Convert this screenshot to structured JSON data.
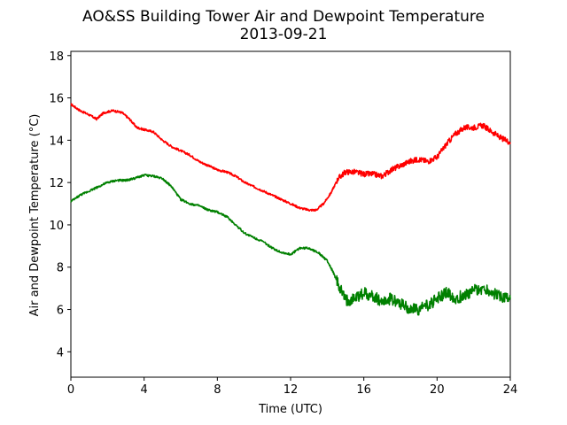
{
  "chart_data": {
    "type": "line",
    "title": "AO&SS Building Tower Air and Dewpoint Temperature",
    "subtitle": "2013-09-21",
    "xlabel": "Time (UTC)",
    "ylabel": "Air and Dewpoint Temperature (°C)",
    "xlim": [
      0,
      24
    ],
    "ylim": [
      2.8,
      18.2
    ],
    "xticks": [
      0,
      4,
      8,
      12,
      16,
      20,
      24
    ],
    "yticks": [
      4,
      6,
      8,
      10,
      12,
      14,
      16,
      18
    ],
    "grid": false,
    "legend": "none",
    "series": [
      {
        "color": "#ff0000",
        "x": [
          0,
          0.5,
          1,
          1.4,
          1.8,
          2.3,
          2.8,
          3.2,
          3.6,
          4,
          4.5,
          5,
          5.5,
          6,
          6.5,
          7,
          7.5,
          8,
          8.5,
          9,
          9.5,
          10,
          10.5,
          11,
          11.5,
          12,
          12.5,
          13,
          13.4,
          13.8,
          14.2,
          14.6,
          15,
          15.5,
          16,
          16.5,
          17,
          17.5,
          18,
          18.5,
          19,
          19.5,
          20,
          20.5,
          21,
          21.5,
          22,
          22.5,
          23,
          23.5,
          24
        ],
        "y": [
          15.7,
          15.4,
          15.2,
          15.0,
          15.3,
          15.4,
          15.3,
          15.0,
          14.6,
          14.5,
          14.4,
          14.0,
          13.7,
          13.5,
          13.3,
          13.0,
          12.8,
          12.6,
          12.5,
          12.3,
          12.0,
          11.8,
          11.6,
          11.4,
          11.2,
          11.0,
          10.8,
          10.7,
          10.7,
          11.0,
          11.5,
          12.2,
          12.5,
          12.5,
          12.4,
          12.4,
          12.3,
          12.6,
          12.8,
          13.0,
          13.1,
          13.0,
          13.2,
          13.8,
          14.3,
          14.6,
          14.6,
          14.7,
          14.4,
          14.1,
          13.9
        ]
      },
      {
        "color": "#008000",
        "x": [
          0,
          0.5,
          1,
          1.5,
          2,
          2.5,
          3,
          3.5,
          4,
          4.5,
          5,
          5.5,
          6,
          6.5,
          7,
          7.5,
          8,
          8.5,
          9,
          9.5,
          10,
          10.5,
          11,
          11.5,
          12,
          12.5,
          13,
          13.5,
          14,
          14.3,
          14.6,
          15,
          15.5,
          16,
          16.5,
          17,
          17.5,
          18,
          18.5,
          19,
          19.5,
          20,
          20.5,
          21,
          21.5,
          22,
          22.5,
          23,
          23.5,
          24
        ],
        "y": [
          11.1,
          11.4,
          11.6,
          11.8,
          12.0,
          12.1,
          12.1,
          12.2,
          12.35,
          12.3,
          12.2,
          11.8,
          11.2,
          11.0,
          10.9,
          10.7,
          10.6,
          10.4,
          10.0,
          9.6,
          9.4,
          9.2,
          8.9,
          8.7,
          8.6,
          8.9,
          8.9,
          8.7,
          8.3,
          7.8,
          7.2,
          6.4,
          6.5,
          6.8,
          6.6,
          6.4,
          6.5,
          6.3,
          6.0,
          6.0,
          6.2,
          6.5,
          6.8,
          6.5,
          6.7,
          6.9,
          7.0,
          6.8,
          6.6,
          6.5
        ]
      }
    ]
  }
}
